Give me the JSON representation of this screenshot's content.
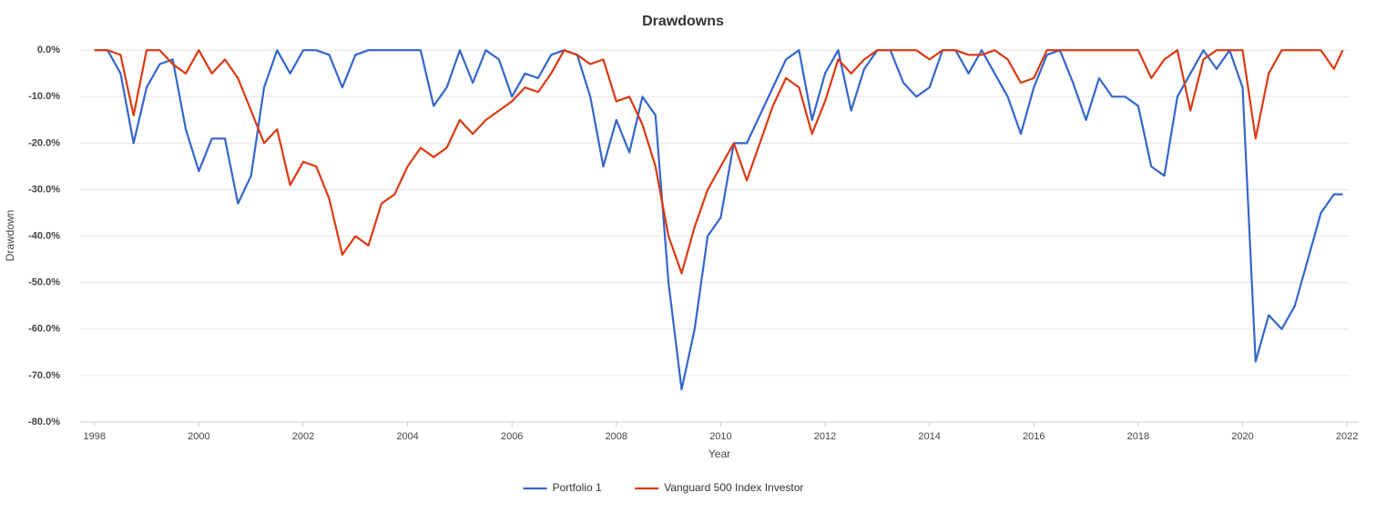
{
  "chart_data": {
    "type": "line",
    "title": "Drawdowns",
    "x_label": "Year",
    "y_label": "Drawdown",
    "xlim": [
      1997.9,
      2022.05
    ],
    "xticks": [
      1998,
      2000,
      2002,
      2004,
      2006,
      2008,
      2010,
      2012,
      2014,
      2016,
      2018,
      2020,
      2022
    ],
    "ylim": [
      -80,
      2
    ],
    "yticks": [
      {
        "value": 0,
        "label": "0.0%"
      },
      {
        "value": -10,
        "label": "-10.0%"
      },
      {
        "value": -20,
        "label": "-20.0%"
      },
      {
        "value": -30,
        "label": "-30.0%"
      },
      {
        "value": -40,
        "label": "-40.0%"
      },
      {
        "value": -50,
        "label": "-50.0%"
      },
      {
        "value": -60,
        "label": "-60.0%"
      },
      {
        "value": -70,
        "label": "-70.0%"
      },
      {
        "value": -80,
        "label": "-80.0%"
      }
    ],
    "grid": true,
    "legend": "bottom",
    "x": [
      1998,
      1998.25,
      1998.5,
      1998.75,
      1999,
      1999.25,
      1999.5,
      1999.75,
      2000,
      2000.25,
      2000.5,
      2000.75,
      2001,
      2001.25,
      2001.5,
      2001.75,
      2002,
      2002.25,
      2002.5,
      2002.75,
      2003,
      2003.25,
      2003.5,
      2003.75,
      2004,
      2004.25,
      2004.5,
      2004.75,
      2005,
      2005.25,
      2005.5,
      2005.75,
      2006,
      2006.25,
      2006.5,
      2006.75,
      2007,
      2007.25,
      2007.5,
      2007.75,
      2008,
      2008.25,
      2008.5,
      2008.75,
      2009,
      2009.25,
      2009.5,
      2009.75,
      2010,
      2010.25,
      2010.5,
      2010.75,
      2011,
      2011.25,
      2011.5,
      2011.75,
      2012,
      2012.25,
      2012.5,
      2012.75,
      2013,
      2013.25,
      2013.5,
      2013.75,
      2014,
      2014.25,
      2014.5,
      2014.75,
      2015,
      2015.25,
      2015.5,
      2015.75,
      2016,
      2016.25,
      2016.5,
      2016.75,
      2017,
      2017.25,
      2017.5,
      2017.75,
      2018,
      2018.25,
      2018.5,
      2018.75,
      2019,
      2019.25,
      2019.5,
      2019.75,
      2020,
      2020.25,
      2020.5,
      2020.75,
      2021,
      2021.25,
      2021.5,
      2021.75,
      2021.92
    ],
    "series": [
      {
        "name": "Portfolio 1",
        "color": "#3366cc",
        "values": [
          0,
          0,
          -5,
          -20,
          -8,
          -3,
          -2,
          -17,
          -26,
          -19,
          -19,
          -33,
          -27,
          -8,
          0,
          -5,
          0,
          0,
          -1,
          -8,
          -1,
          0,
          0,
          0,
          0,
          0,
          -12,
          -8,
          0,
          -7,
          0,
          -2,
          -10,
          -5,
          -6,
          -1,
          0,
          -1,
          -10,
          -25,
          -15,
          -22,
          -10,
          -14,
          -50,
          -73,
          -60,
          -40,
          -36,
          -20,
          -20,
          -14,
          -8,
          -2,
          0,
          -15,
          -5,
          0,
          -13,
          -4,
          0,
          0,
          -7,
          -10,
          -8,
          0,
          0,
          -5,
          0,
          -5,
          -10,
          -18,
          -8,
          -1,
          0,
          -7,
          -15,
          -6,
          -10,
          -10,
          -12,
          -25,
          -27,
          -10,
          -5,
          0,
          -4,
          0,
          -8,
          -67,
          -57,
          -60,
          -55,
          -45,
          -35,
          -31,
          -31
        ]
      },
      {
        "name": "Vanguard 500 Index Investor",
        "color": "#dc3912",
        "values": [
          0,
          0,
          -1,
          -14,
          0,
          0,
          -3,
          -5,
          0,
          -5,
          -2,
          -6,
          -13,
          -20,
          -17,
          -29,
          -24,
          -25,
          -32,
          -44,
          -40,
          -42,
          -33,
          -31,
          -25,
          -21,
          -23,
          -21,
          -15,
          -18,
          -15,
          -13,
          -11,
          -8,
          -9,
          -5,
          0,
          -1,
          -3,
          -2,
          -11,
          -10,
          -16,
          -25,
          -40,
          -48,
          -38,
          -30,
          -25,
          -20,
          -28,
          -20,
          -12,
          -6,
          -8,
          -18,
          -11,
          -2,
          -5,
          -2,
          0,
          0,
          0,
          0,
          -2,
          0,
          0,
          -1,
          -1,
          0,
          -2,
          -7,
          -6,
          0,
          0,
          0,
          0,
          0,
          0,
          0,
          0,
          -6,
          -2,
          0,
          -13,
          -2,
          0,
          0,
          0,
          -19,
          -5,
          0,
          0,
          0,
          0,
          -4,
          0
        ]
      }
    ]
  }
}
